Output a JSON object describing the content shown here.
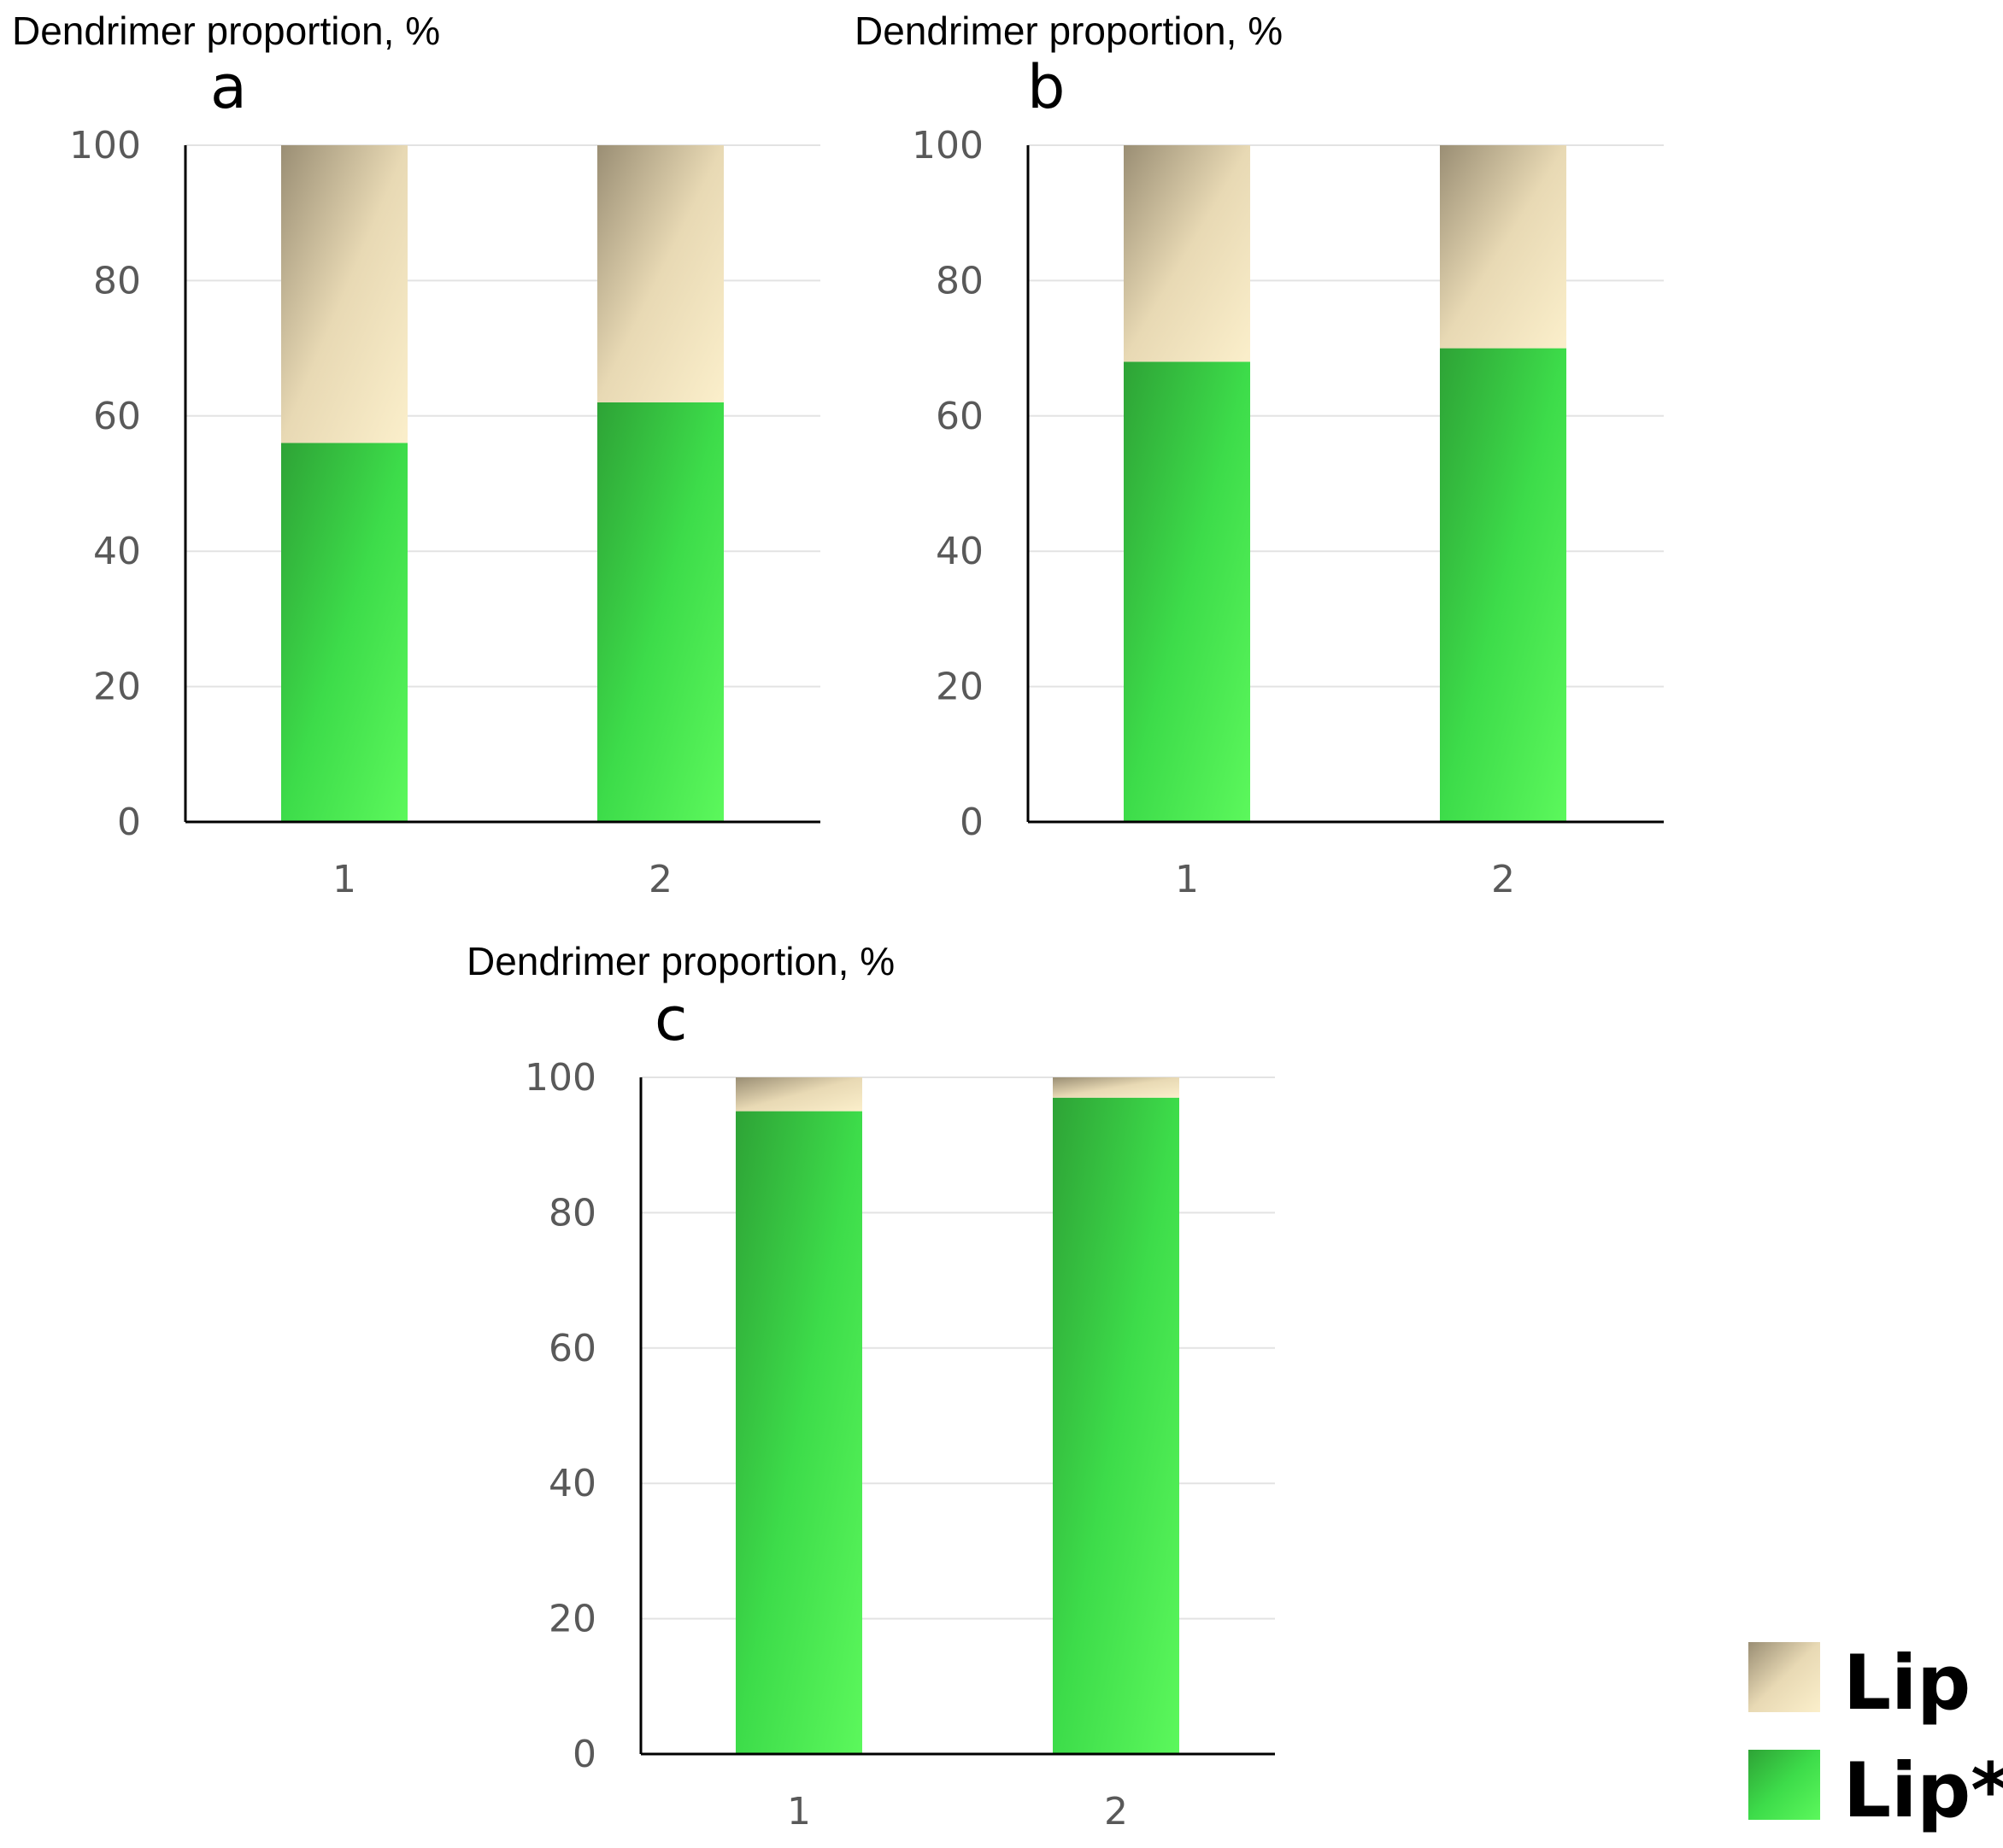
{
  "colors": {
    "lip": "#e8d9b4",
    "lip_dark": "#9a8e74",
    "lip_light": "#fbefcb",
    "lip_star": "#3ddc4a",
    "lip_star_dark": "#2ea336",
    "lip_star_light": "#5cf85c",
    "axis": "#000000",
    "grid": "#e3e3e3",
    "tick_text": "#595959"
  },
  "chart_data": [
    {
      "type": "bar",
      "stacked": true,
      "panel": "a",
      "ylabel": "Dendrimer proportion, %",
      "categories": [
        "1",
        "2"
      ],
      "series": [
        {
          "name": "Lip*",
          "values": [
            56,
            62
          ]
        },
        {
          "name": "Lip",
          "values": [
            44,
            38
          ]
        }
      ],
      "ylim": [
        0,
        100
      ],
      "yticks": [
        "0",
        "20",
        "40",
        "60",
        "80",
        "100"
      ],
      "grid": true
    },
    {
      "type": "bar",
      "stacked": true,
      "panel": "b",
      "ylabel": "Dendrimer proportion, %",
      "categories": [
        "1",
        "2"
      ],
      "series": [
        {
          "name": "Lip*",
          "values": [
            68,
            70
          ]
        },
        {
          "name": "Lip",
          "values": [
            32,
            30
          ]
        }
      ],
      "ylim": [
        0,
        100
      ],
      "yticks": [
        "0",
        "20",
        "40",
        "60",
        "80",
        "100"
      ],
      "grid": true
    },
    {
      "type": "bar",
      "stacked": true,
      "panel": "c",
      "ylabel": "Dendrimer proportion, %",
      "categories": [
        "1",
        "2"
      ],
      "series": [
        {
          "name": "Lip*",
          "values": [
            95,
            97
          ]
        },
        {
          "name": "Lip",
          "values": [
            5,
            3
          ]
        }
      ],
      "ylim": [
        0,
        100
      ],
      "yticks": [
        "0",
        "20",
        "40",
        "60",
        "80",
        "100"
      ],
      "grid": true
    }
  ],
  "legend": {
    "position": "bottom-right",
    "items": [
      {
        "label": "Lip",
        "color": "#e8d9b4"
      },
      {
        "label": "Lip*",
        "color": "#3ddc4a"
      }
    ]
  }
}
